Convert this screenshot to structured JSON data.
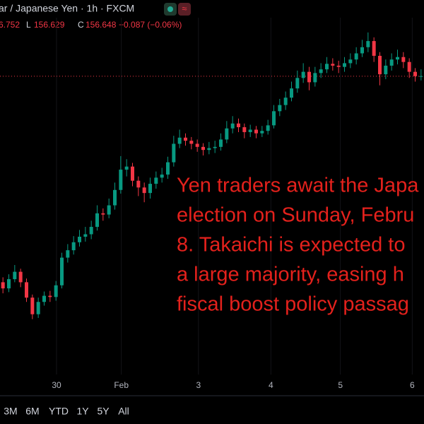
{
  "header": {
    "symbol": "ar / Japanese Yen · 1h · FXCM",
    "ohlc": [
      "6.752",
      "L",
      "156.629",
      "C",
      "156.648",
      "−0.087 (−0.06%)"
    ]
  },
  "chart_data": {
    "type": "candlestick",
    "open": [
      153.3,
      153.2,
      153.35,
      153.47,
      153.3,
      153.05,
      152.78,
      152.98,
      153.08,
      153.06,
      153.25,
      153.7,
      153.82,
      153.95,
      154.04,
      154.08,
      154.2,
      154.42,
      154.4,
      154.55,
      154.8,
      155.13,
      155.18,
      154.95,
      154.84,
      154.75,
      154.9,
      155.0,
      155.05,
      155.25,
      155.55,
      155.65,
      155.6,
      155.55,
      155.5,
      155.45,
      155.48,
      155.5,
      155.62,
      155.8,
      155.88,
      155.82,
      155.74,
      155.78,
      155.72,
      155.76,
      155.85,
      156.08,
      156.18,
      156.3,
      156.45,
      156.62,
      156.72,
      156.55,
      156.7,
      156.76,
      156.85,
      156.82,
      156.8,
      156.86,
      156.92,
      157.02,
      157.12,
      157.22,
      156.98,
      156.68,
      156.82,
      156.92,
      156.96,
      156.88,
      156.72,
      156.65
    ],
    "high": [
      153.38,
      153.43,
      153.58,
      153.52,
      153.36,
      153.1,
      153.05,
      153.15,
      153.16,
      153.32,
      153.78,
      153.92,
      154.05,
      154.15,
      154.2,
      154.3,
      154.55,
      154.5,
      154.66,
      154.92,
      155.35,
      155.3,
      155.24,
      155.02,
      154.92,
      155.0,
      155.1,
      155.16,
      155.34,
      155.68,
      155.78,
      155.72,
      155.66,
      155.62,
      155.56,
      155.58,
      155.6,
      155.72,
      155.92,
      156.0,
      155.96,
      155.88,
      155.86,
      155.84,
      155.84,
      155.94,
      156.18,
      156.28,
      156.4,
      156.56,
      156.74,
      156.86,
      156.8,
      156.8,
      156.86,
      156.96,
      156.94,
      156.9,
      156.96,
      157.02,
      157.12,
      157.24,
      157.36,
      157.28,
      157.04,
      156.92,
      157.02,
      157.08,
      157.04,
      156.94,
      156.78,
      156.76
    ],
    "low": [
      153.12,
      153.14,
      153.3,
      153.22,
      152.98,
      152.7,
      152.72,
      152.92,
      152.98,
      153.0,
      153.2,
      153.62,
      153.75,
      153.88,
      153.96,
      154.0,
      154.14,
      154.3,
      154.34,
      154.48,
      154.74,
      155.02,
      154.86,
      154.7,
      154.6,
      154.66,
      154.82,
      154.92,
      154.98,
      155.18,
      155.48,
      155.52,
      155.46,
      155.42,
      155.36,
      155.38,
      155.4,
      155.44,
      155.56,
      155.72,
      155.74,
      155.64,
      155.66,
      155.64,
      155.66,
      155.7,
      155.8,
      156.0,
      156.1,
      156.24,
      156.38,
      156.54,
      156.42,
      156.48,
      156.62,
      156.7,
      156.74,
      156.7,
      156.72,
      156.78,
      156.84,
      156.96,
      157.04,
      156.88,
      156.5,
      156.6,
      156.74,
      156.84,
      156.78,
      156.62,
      156.56,
      156.58
    ],
    "close": [
      153.2,
      153.35,
      153.47,
      153.3,
      153.05,
      152.78,
      152.98,
      153.08,
      153.06,
      153.25,
      153.7,
      153.82,
      153.95,
      154.04,
      154.08,
      154.2,
      154.42,
      154.4,
      154.55,
      154.8,
      155.13,
      155.18,
      154.95,
      154.84,
      154.75,
      154.9,
      155.0,
      155.05,
      155.25,
      155.55,
      155.65,
      155.6,
      155.55,
      155.5,
      155.45,
      155.48,
      155.5,
      155.62,
      155.8,
      155.88,
      155.82,
      155.74,
      155.78,
      155.72,
      155.76,
      155.85,
      156.08,
      156.18,
      156.3,
      156.45,
      156.62,
      156.72,
      156.55,
      156.7,
      156.76,
      156.85,
      156.82,
      156.8,
      156.86,
      156.92,
      157.02,
      157.12,
      157.22,
      156.98,
      156.68,
      156.82,
      156.92,
      156.96,
      156.88,
      156.72,
      156.65,
      156.65
    ],
    "xlim": [
      0,
      72
    ],
    "ylim": [
      151.8,
      157.6
    ],
    "xticks": [
      {
        "value": 9.6,
        "label": "30"
      },
      {
        "value": 20.6,
        "label": "Feb"
      },
      {
        "value": 33.7,
        "label": "3"
      },
      {
        "value": 46,
        "label": "4"
      },
      {
        "value": 57.8,
        "label": "5"
      },
      {
        "value": 70,
        "label": "6"
      }
    ],
    "grid": true,
    "up_color": "#089981",
    "down_color": "#f23645",
    "price_line": 156.648,
    "annotation": [
      "Yen traders await the Japa",
      "election on Sunday, Febru",
      "8. Takaichi is expected to",
      "a large majority, easing h",
      "fiscal boost policy passag"
    ],
    "annotation_color": "#e3211c"
  },
  "toolbar": [
    "3M",
    "6M",
    "YTD",
    "1Y",
    "5Y",
    "All"
  ]
}
